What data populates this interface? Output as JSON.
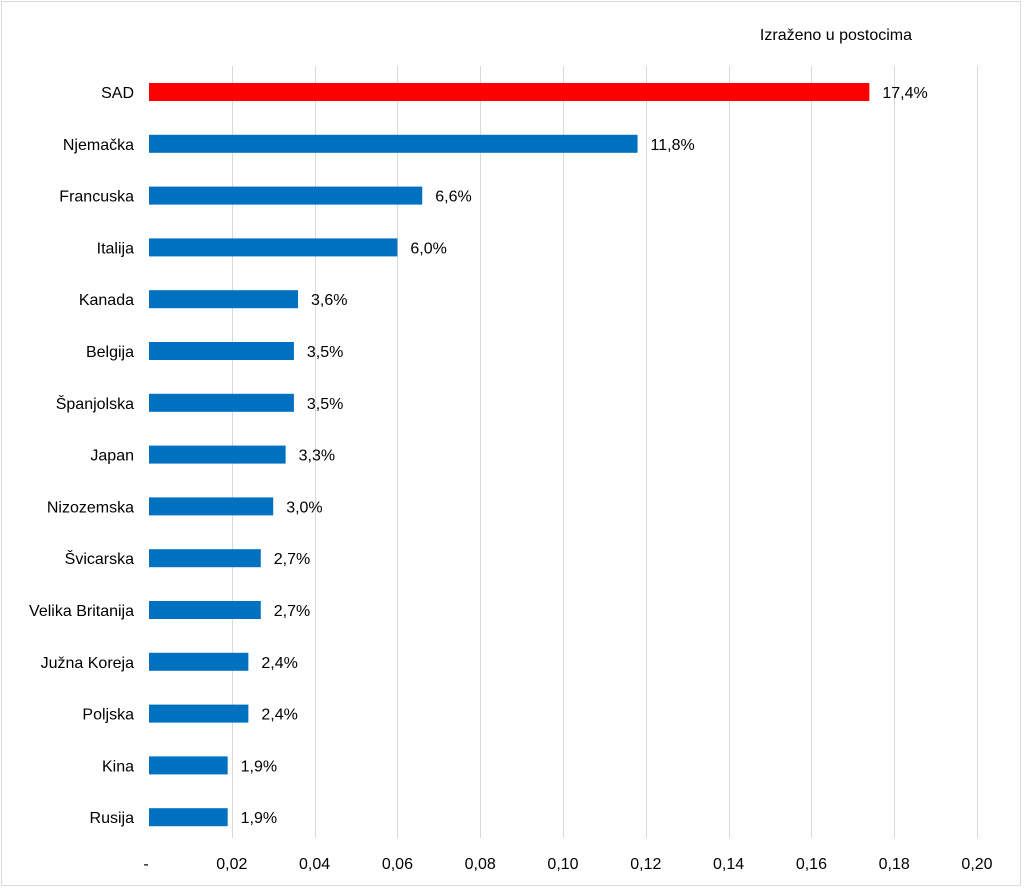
{
  "chart_data": {
    "type": "bar",
    "orientation": "horizontal",
    "note": "Izraženo u postocima",
    "categories": [
      "SAD",
      "Njemačka",
      "Francuska",
      "Italija",
      "Kanada",
      "Belgija",
      "Španjolska",
      "Japan",
      "Nizozemska",
      "Švicarska",
      "Velika Britanija",
      "Južna Koreja",
      "Poljska",
      "Kina",
      "Rusija"
    ],
    "values": [
      0.174,
      0.118,
      0.066,
      0.06,
      0.036,
      0.035,
      0.035,
      0.033,
      0.03,
      0.027,
      0.027,
      0.024,
      0.024,
      0.019,
      0.019
    ],
    "value_labels": [
      "17,4%",
      "11,8%",
      "6,6%",
      "6,0%",
      "3,6%",
      "3,5%",
      "3,5%",
      "3,3%",
      "3,0%",
      "2,7%",
      "2,7%",
      "2,4%",
      "2,4%",
      "1,9%",
      "1,9%"
    ],
    "highlight_index": 0,
    "xlim": [
      0,
      0.2
    ],
    "x_ticks": [
      0,
      0.02,
      0.04,
      0.06,
      0.08,
      0.1,
      0.12,
      0.14,
      0.16,
      0.18,
      0.2
    ],
    "x_tick_labels": [
      "-",
      "0,02",
      "0,04",
      "0,06",
      "0,08",
      "0,10",
      "0,12",
      "0,14",
      "0,16",
      "0,18",
      "0,20"
    ],
    "grid": true,
    "colors": {
      "bar": "#0070c0",
      "highlight": "#ff0000",
      "grid": "#d9d9d9",
      "text": "#000000"
    }
  }
}
